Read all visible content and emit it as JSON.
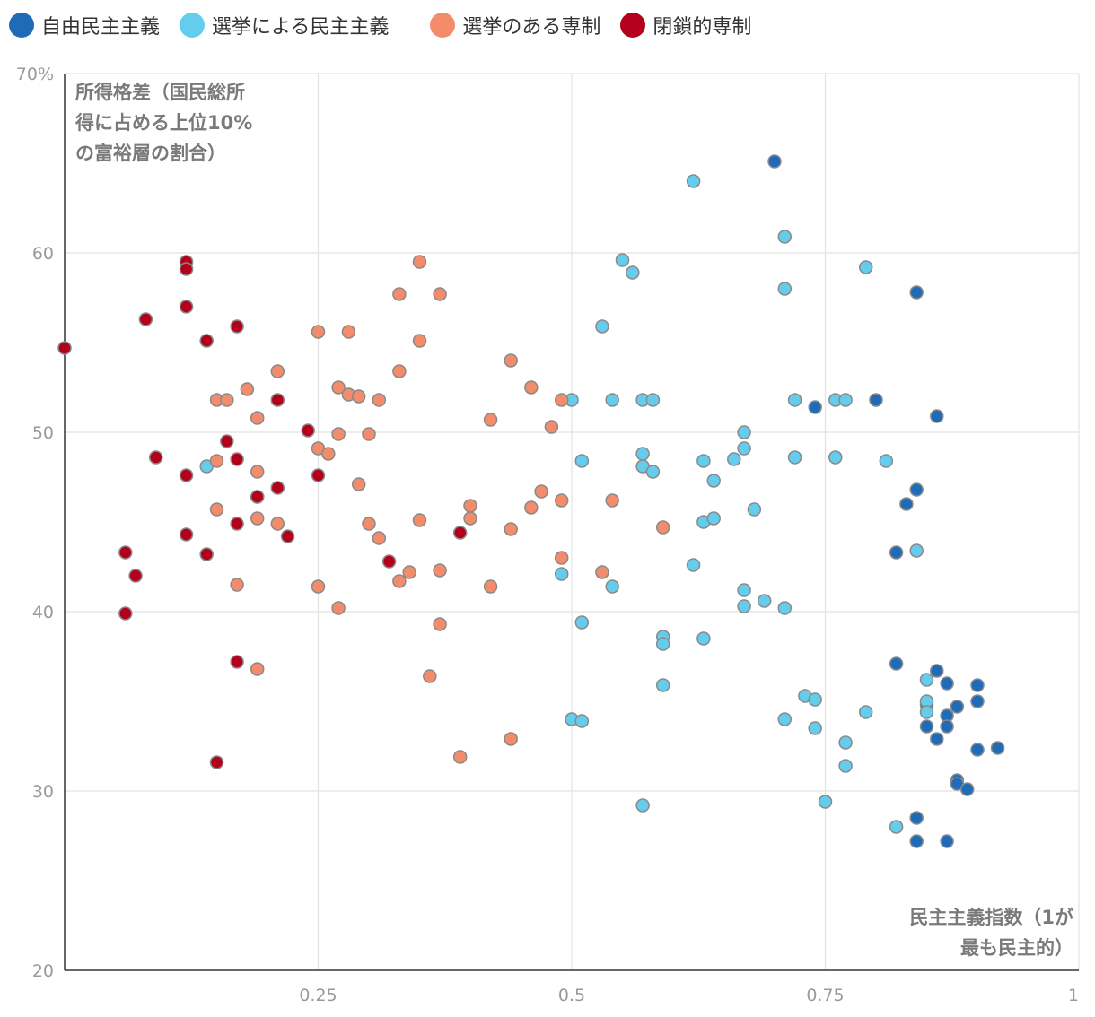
{
  "chart_data": {
    "type": "scatter",
    "title": "",
    "xlabel_lines": [
      "民主主義指数（1が",
      "最も民主的）"
    ],
    "ylabel_lines": [
      "所得格差（国民総所",
      "得に占める上位10%",
      "の富裕層の割合）"
    ],
    "xlim": [
      0,
      1
    ],
    "ylim": [
      20,
      70
    ],
    "x_ticks": [
      0.25,
      0.5,
      0.75,
      1
    ],
    "x_tick_labels": [
      "0.25",
      "0.5",
      "0.75",
      "1"
    ],
    "y_ticks": [
      20,
      30,
      40,
      50,
      60,
      70
    ],
    "y_tick_labels": [
      "20",
      "30",
      "40",
      "50",
      "60",
      "70%"
    ],
    "grid": true,
    "legend_position": "top-left",
    "series": [
      {
        "name": "自由民主主義",
        "color": "#1f6bb8",
        "points": [
          [
            0.7,
            65.1
          ],
          [
            0.84,
            57.8
          ],
          [
            0.8,
            51.8
          ],
          [
            0.74,
            51.4
          ],
          [
            0.86,
            50.9
          ],
          [
            0.84,
            46.8
          ],
          [
            0.83,
            46.0
          ],
          [
            0.82,
            43.3
          ],
          [
            0.82,
            37.1
          ],
          [
            0.86,
            36.7
          ],
          [
            0.87,
            36.0
          ],
          [
            0.9,
            35.9
          ],
          [
            0.85,
            34.8
          ],
          [
            0.88,
            34.7
          ],
          [
            0.9,
            35.0
          ],
          [
            0.87,
            34.2
          ],
          [
            0.85,
            33.6
          ],
          [
            0.87,
            33.6
          ],
          [
            0.86,
            32.9
          ],
          [
            0.9,
            32.3
          ],
          [
            0.92,
            32.4
          ],
          [
            0.88,
            30.6
          ],
          [
            0.88,
            30.4
          ],
          [
            0.89,
            30.1
          ],
          [
            0.84,
            28.5
          ],
          [
            0.84,
            27.2
          ],
          [
            0.87,
            27.2
          ]
        ]
      },
      {
        "name": "選挙による民主主義",
        "color": "#64cdee",
        "points": [
          [
            0.62,
            64.0
          ],
          [
            0.71,
            60.9
          ],
          [
            0.79,
            59.2
          ],
          [
            0.55,
            59.6
          ],
          [
            0.56,
            58.9
          ],
          [
            0.71,
            58.0
          ],
          [
            0.53,
            55.9
          ],
          [
            0.5,
            51.8
          ],
          [
            0.54,
            51.8
          ],
          [
            0.57,
            51.8
          ],
          [
            0.58,
            51.8
          ],
          [
            0.72,
            51.8
          ],
          [
            0.76,
            51.8
          ],
          [
            0.77,
            51.8
          ],
          [
            0.67,
            50.0
          ],
          [
            0.67,
            49.1
          ],
          [
            0.57,
            48.8
          ],
          [
            0.51,
            48.4
          ],
          [
            0.63,
            48.4
          ],
          [
            0.66,
            48.5
          ],
          [
            0.72,
            48.6
          ],
          [
            0.76,
            48.6
          ],
          [
            0.81,
            48.4
          ],
          [
            0.57,
            48.1
          ],
          [
            0.58,
            47.8
          ],
          [
            0.64,
            47.3
          ],
          [
            0.68,
            45.7
          ],
          [
            0.63,
            45.0
          ],
          [
            0.64,
            45.2
          ],
          [
            0.84,
            43.4
          ],
          [
            0.62,
            42.6
          ],
          [
            0.49,
            42.1
          ],
          [
            0.54,
            41.4
          ],
          [
            0.67,
            41.2
          ],
          [
            0.69,
            40.6
          ],
          [
            0.67,
            40.3
          ],
          [
            0.71,
            40.2
          ],
          [
            0.51,
            39.4
          ],
          [
            0.59,
            38.6
          ],
          [
            0.59,
            38.2
          ],
          [
            0.63,
            38.5
          ],
          [
            0.59,
            35.9
          ],
          [
            0.73,
            35.3
          ],
          [
            0.74,
            35.1
          ],
          [
            0.85,
            36.2
          ],
          [
            0.85,
            35.0
          ],
          [
            0.85,
            34.4
          ],
          [
            0.79,
            34.4
          ],
          [
            0.5,
            34.0
          ],
          [
            0.51,
            33.9
          ],
          [
            0.71,
            34.0
          ],
          [
            0.74,
            33.5
          ],
          [
            0.77,
            32.7
          ],
          [
            0.77,
            31.4
          ],
          [
            0.57,
            29.2
          ],
          [
            0.75,
            29.4
          ],
          [
            0.82,
            28.0
          ],
          [
            0.14,
            48.1
          ]
        ]
      },
      {
        "name": "選挙のある専制",
        "color": "#f28c6a",
        "points": [
          [
            0.35,
            59.5
          ],
          [
            0.33,
            57.7
          ],
          [
            0.37,
            57.7
          ],
          [
            0.25,
            55.6
          ],
          [
            0.28,
            55.6
          ],
          [
            0.35,
            55.1
          ],
          [
            0.44,
            54.0
          ],
          [
            0.21,
            53.4
          ],
          [
            0.33,
            53.4
          ],
          [
            0.27,
            52.5
          ],
          [
            0.28,
            52.1
          ],
          [
            0.29,
            52.0
          ],
          [
            0.18,
            52.4
          ],
          [
            0.15,
            51.8
          ],
          [
            0.16,
            51.8
          ],
          [
            0.31,
            51.8
          ],
          [
            0.46,
            52.5
          ],
          [
            0.49,
            51.8
          ],
          [
            0.19,
            50.8
          ],
          [
            0.42,
            50.7
          ],
          [
            0.48,
            50.3
          ],
          [
            0.27,
            49.9
          ],
          [
            0.3,
            49.9
          ],
          [
            0.25,
            49.1
          ],
          [
            0.26,
            48.8
          ],
          [
            0.15,
            48.4
          ],
          [
            0.19,
            47.8
          ],
          [
            0.29,
            47.1
          ],
          [
            0.47,
            46.7
          ],
          [
            0.19,
            46.4
          ],
          [
            0.49,
            46.2
          ],
          [
            0.54,
            46.2
          ],
          [
            0.4,
            45.9
          ],
          [
            0.46,
            45.8
          ],
          [
            0.15,
            45.7
          ],
          [
            0.19,
            45.2
          ],
          [
            0.35,
            45.1
          ],
          [
            0.4,
            45.2
          ],
          [
            0.21,
            44.9
          ],
          [
            0.3,
            44.9
          ],
          [
            0.44,
            44.6
          ],
          [
            0.59,
            44.7
          ],
          [
            0.31,
            44.1
          ],
          [
            0.49,
            43.0
          ],
          [
            0.34,
            42.2
          ],
          [
            0.37,
            42.3
          ],
          [
            0.53,
            42.2
          ],
          [
            0.33,
            41.7
          ],
          [
            0.17,
            41.5
          ],
          [
            0.25,
            41.4
          ],
          [
            0.42,
            41.4
          ],
          [
            0.27,
            40.2
          ],
          [
            0.37,
            39.3
          ],
          [
            0.19,
            36.8
          ],
          [
            0.36,
            36.4
          ],
          [
            0.44,
            32.9
          ],
          [
            0.39,
            31.9
          ]
        ]
      },
      {
        "name": "閉鎖的専制",
        "color": "#b3001b",
        "points": [
          [
            0.0,
            54.7
          ],
          [
            0.12,
            59.5
          ],
          [
            0.12,
            59.1
          ],
          [
            0.08,
            56.3
          ],
          [
            0.12,
            57.0
          ],
          [
            0.17,
            55.9
          ],
          [
            0.14,
            55.1
          ],
          [
            0.21,
            51.8
          ],
          [
            0.24,
            50.1
          ],
          [
            0.16,
            49.5
          ],
          [
            0.09,
            48.6
          ],
          [
            0.17,
            48.5
          ],
          [
            0.12,
            47.6
          ],
          [
            0.25,
            47.6
          ],
          [
            0.21,
            46.9
          ],
          [
            0.19,
            46.4
          ],
          [
            0.17,
            44.9
          ],
          [
            0.12,
            44.3
          ],
          [
            0.22,
            44.2
          ],
          [
            0.39,
            44.4
          ],
          [
            0.06,
            43.3
          ],
          [
            0.14,
            43.2
          ],
          [
            0.32,
            42.8
          ],
          [
            0.07,
            42.0
          ],
          [
            0.06,
            39.9
          ],
          [
            0.17,
            37.2
          ],
          [
            0.15,
            31.6
          ]
        ]
      }
    ]
  }
}
